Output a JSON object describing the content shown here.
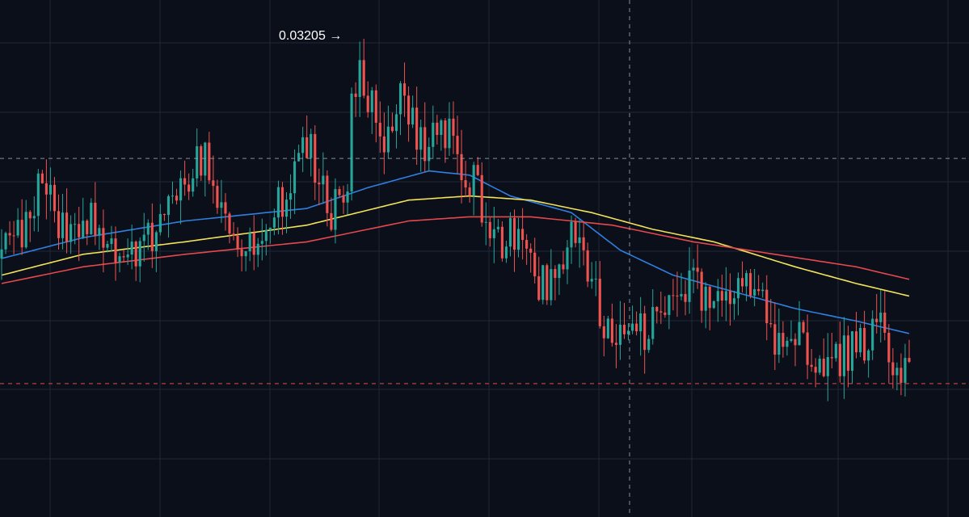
{
  "colors": {
    "background": "#0b0f1a",
    "grid": "#1f2737",
    "up": "#26a69a",
    "down": "#ef5350",
    "ma_fast": "#2f7fe0",
    "ma_mid": "#f2e35a",
    "ma_slow": "#e5484d",
    "crosshair": "#9aa3b2",
    "last_price_line": "#e5484d"
  },
  "chart_data": {
    "type": "candlestick",
    "price_high_annotation": "0.03205 →",
    "ylim": [
      0.0208,
      0.0332
    ],
    "grid": true,
    "crosshair_price": 0.0294,
    "last_price": 0.024,
    "candle_count": 224,
    "anchors": [
      [
        0,
        0.027
      ],
      [
        8,
        0.0283
      ],
      [
        10,
        0.0293
      ],
      [
        14,
        0.0276
      ],
      [
        22,
        0.028
      ],
      [
        30,
        0.027
      ],
      [
        35,
        0.0272
      ],
      [
        40,
        0.0283
      ],
      [
        46,
        0.029
      ],
      [
        50,
        0.0295
      ],
      [
        56,
        0.028
      ],
      [
        62,
        0.0272
      ],
      [
        66,
        0.0278
      ],
      [
        72,
        0.0292
      ],
      [
        76,
        0.0296
      ],
      [
        80,
        0.0282
      ],
      [
        85,
        0.0282
      ],
      [
        86,
        0.0315
      ],
      [
        90,
        0.031
      ],
      [
        94,
        0.0295
      ],
      [
        98,
        0.031
      ],
      [
        104,
        0.0296
      ],
      [
        110,
        0.03
      ],
      [
        115,
        0.029
      ],
      [
        122,
        0.0276
      ],
      [
        126,
        0.0274
      ],
      [
        134,
        0.0262
      ],
      [
        140,
        0.0278
      ],
      [
        144,
        0.0265
      ],
      [
        148,
        0.0255
      ],
      [
        154,
        0.025
      ],
      [
        158,
        0.0253
      ],
      [
        166,
        0.0258
      ],
      [
        170,
        0.0266
      ],
      [
        174,
        0.0256
      ],
      [
        178,
        0.0259
      ],
      [
        182,
        0.0266
      ],
      [
        186,
        0.026
      ],
      [
        190,
        0.0252
      ],
      [
        196,
        0.025
      ],
      [
        200,
        0.0245
      ],
      [
        206,
        0.0247
      ],
      [
        212,
        0.025
      ],
      [
        216,
        0.0252
      ],
      [
        219,
        0.0246
      ],
      [
        223,
        0.024
      ]
    ],
    "moving_averages": [
      {
        "key": "ma_fast",
        "points": [
          [
            0,
            0.027
          ],
          [
            20,
            0.0275
          ],
          [
            45,
            0.0279
          ],
          [
            75,
            0.0282
          ],
          [
            90,
            0.0287
          ],
          [
            105,
            0.0291
          ],
          [
            115,
            0.029
          ],
          [
            125,
            0.0285
          ],
          [
            140,
            0.0281
          ],
          [
            152,
            0.0272
          ],
          [
            165,
            0.0266
          ],
          [
            180,
            0.0262
          ],
          [
            195,
            0.0258
          ],
          [
            210,
            0.0255
          ],
          [
            223,
            0.0252
          ]
        ]
      },
      {
        "key": "ma_mid",
        "points": [
          [
            0,
            0.0266
          ],
          [
            20,
            0.0271
          ],
          [
            45,
            0.0274
          ],
          [
            75,
            0.0278
          ],
          [
            100,
            0.0284
          ],
          [
            115,
            0.0285
          ],
          [
            130,
            0.0284
          ],
          [
            145,
            0.0281
          ],
          [
            160,
            0.0277
          ],
          [
            175,
            0.0274
          ],
          [
            195,
            0.0268
          ],
          [
            210,
            0.0264
          ],
          [
            223,
            0.0261
          ]
        ]
      },
      {
        "key": "ma_slow",
        "points": [
          [
            0,
            0.0264
          ],
          [
            20,
            0.0268
          ],
          [
            45,
            0.0271
          ],
          [
            75,
            0.0274
          ],
          [
            100,
            0.0279
          ],
          [
            115,
            0.028
          ],
          [
            130,
            0.028
          ],
          [
            150,
            0.0278
          ],
          [
            170,
            0.0274
          ],
          [
            190,
            0.0271
          ],
          [
            210,
            0.0268
          ],
          [
            223,
            0.0265
          ]
        ]
      }
    ]
  }
}
